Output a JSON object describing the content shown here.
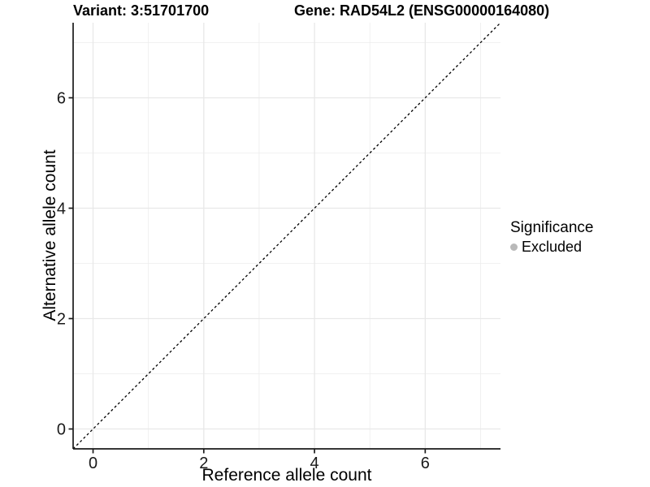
{
  "titles": {
    "variant": "Variant: 3:51701700",
    "gene": "Gene: RAD54L2 (ENSG00000164080)"
  },
  "legend": {
    "title": "Significance",
    "items": [
      {
        "label": "Excluded",
        "color": "#b9b9b9"
      }
    ]
  },
  "chart_data": {
    "type": "scatter",
    "title_left": "Variant: 3:51701700",
    "title_right": "Gene: RAD54L2 (ENSG00000164080)",
    "xlabel": "Reference allele count",
    "ylabel": "Alternative allele count",
    "xlim": [
      -0.36,
      7.36
    ],
    "ylim": [
      -0.36,
      7.36
    ],
    "x_major_ticks": [
      0,
      2,
      4,
      6
    ],
    "y_major_ticks": [
      0,
      2,
      4,
      6
    ],
    "x_minor_ticks": [
      1,
      3,
      5,
      7
    ],
    "y_minor_ticks": [
      1,
      3,
      5,
      7
    ],
    "points": [],
    "reference_line": {
      "type": "identity",
      "equation": "y = x",
      "style": "dashed",
      "color": "#000000"
    },
    "grid": true,
    "legend_position": "right",
    "legend_title": "Significance",
    "legend_entries": [
      {
        "label": "Excluded",
        "color": "#b9b9b9"
      }
    ],
    "colors": {
      "background": "#ffffff",
      "grid_major": "#e8e8e8",
      "grid_minor": "#ededed",
      "axis_line": "#1a1a1a",
      "tick_text": "#1a1a1a"
    }
  }
}
